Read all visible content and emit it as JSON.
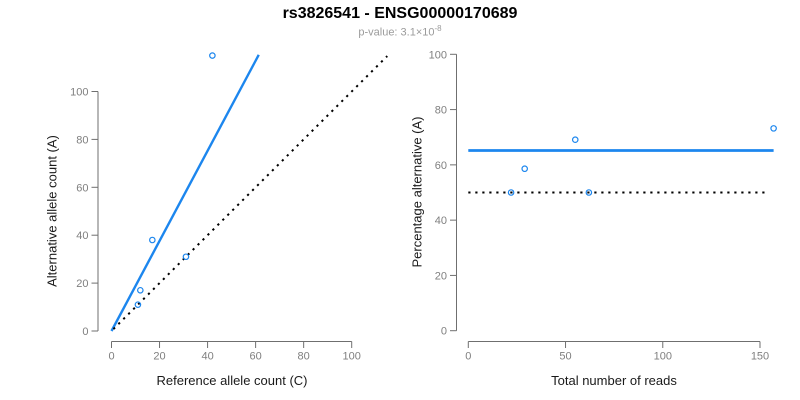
{
  "header": {
    "title": "rs3826541 - ENSG00000170689",
    "subtitle_prefix": "p-value: 3.1×10",
    "subtitle_exponent": "-8"
  },
  "colors": {
    "accent_blue": "#1C86EE",
    "identity_line": "#000000",
    "axis": "#6f6f6f",
    "tick_label": "#7f7f7f",
    "title": "#000000",
    "subtitle": "#9b9b9b"
  },
  "chart_data": [
    {
      "type": "scatter",
      "name": "allele-counts-plot",
      "xlabel": "Reference allele count (C)",
      "ylabel": "Alternative allele count (A)",
      "x": [
        11,
        12,
        17,
        31,
        42
      ],
      "y": [
        11,
        17,
        38,
        31,
        115
      ],
      "xticks": [
        0,
        20,
        40,
        60,
        80,
        100
      ],
      "yticks": [
        0,
        20,
        40,
        60,
        80,
        100
      ],
      "xlim": [
        0,
        115
      ],
      "ylim": [
        0,
        116
      ],
      "grid": false,
      "legend": "none",
      "point_style": "open-circle",
      "lines": [
        {
          "name": "fit-line",
          "style": "solid",
          "color": "#1C86EE",
          "width": 2.4,
          "x1": 0,
          "y1": 0,
          "x2": 61.3,
          "y2": 115.3
        },
        {
          "name": "identity-line",
          "style": "dotted",
          "color": "#000000",
          "width": 2,
          "x1": 0.8,
          "y1": 0.8,
          "x2": 114.8,
          "y2": 114.8
        }
      ]
    },
    {
      "type": "scatter",
      "name": "percentage-alternative-plot",
      "xlabel": "Total number of reads",
      "ylabel": "Percentage alternative (A)",
      "x": [
        22,
        29,
        55,
        62,
        157
      ],
      "y": [
        50,
        58.6,
        69.1,
        50,
        73.2
      ],
      "xticks": [
        0,
        50,
        100,
        150
      ],
      "yticks": [
        0,
        20,
        40,
        60,
        80,
        100
      ],
      "xlim": [
        0,
        157
      ],
      "ylim": [
        0,
        100
      ],
      "grid": false,
      "legend": "none",
      "point_style": "open-circle",
      "lines": [
        {
          "name": "mean-percentage-line",
          "style": "solid",
          "color": "#1C86EE",
          "width": 2.8,
          "x1": 0,
          "y1": 65.2,
          "x2": 157,
          "y2": 65.2
        },
        {
          "name": "null-50-percent-line",
          "style": "dotted",
          "color": "#000000",
          "width": 2,
          "x1": 0,
          "y1": 50,
          "x2": 154,
          "y2": 50
        }
      ]
    }
  ]
}
